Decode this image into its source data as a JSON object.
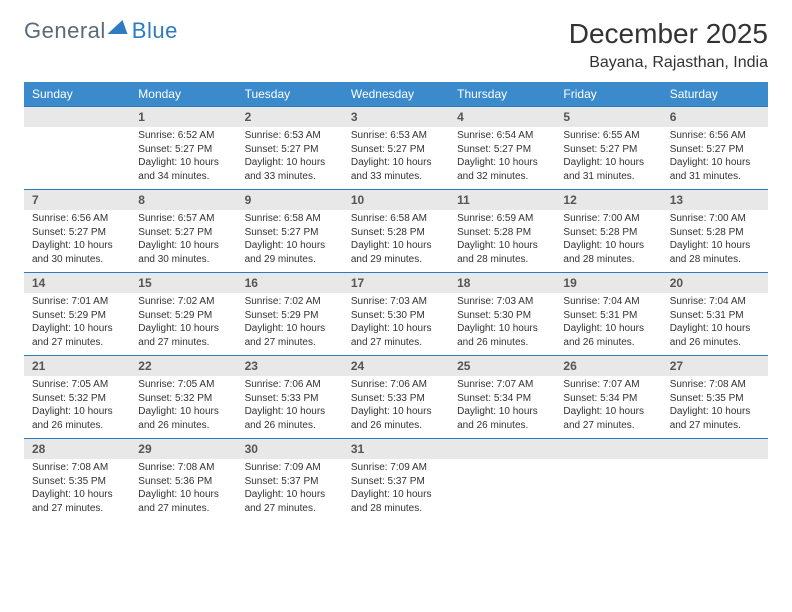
{
  "logo": {
    "part1": "General",
    "part2": "Blue"
  },
  "header": {
    "month_title": "December 2025",
    "location": "Bayana, Rajasthan, India"
  },
  "style": {
    "header_bg": "#3b8bcc",
    "header_text": "#ffffff",
    "daynum_bg": "#e8e8e8",
    "daynum_text": "#555555",
    "border_color": "#2d7bc0",
    "body_text": "#333333",
    "title_fontsize": 28,
    "location_fontsize": 16,
    "weekday_fontsize": 12,
    "daynum_fontsize": 12,
    "detail_fontsize": 10
  },
  "weekdays": [
    "Sunday",
    "Monday",
    "Tuesday",
    "Wednesday",
    "Thursday",
    "Friday",
    "Saturday"
  ],
  "weeks": [
    [
      null,
      {
        "n": "1",
        "sr": "Sunrise: 6:52 AM",
        "ss": "Sunset: 5:27 PM",
        "dl": "Daylight: 10 hours and 34 minutes."
      },
      {
        "n": "2",
        "sr": "Sunrise: 6:53 AM",
        "ss": "Sunset: 5:27 PM",
        "dl": "Daylight: 10 hours and 33 minutes."
      },
      {
        "n": "3",
        "sr": "Sunrise: 6:53 AM",
        "ss": "Sunset: 5:27 PM",
        "dl": "Daylight: 10 hours and 33 minutes."
      },
      {
        "n": "4",
        "sr": "Sunrise: 6:54 AM",
        "ss": "Sunset: 5:27 PM",
        "dl": "Daylight: 10 hours and 32 minutes."
      },
      {
        "n": "5",
        "sr": "Sunrise: 6:55 AM",
        "ss": "Sunset: 5:27 PM",
        "dl": "Daylight: 10 hours and 31 minutes."
      },
      {
        "n": "6",
        "sr": "Sunrise: 6:56 AM",
        "ss": "Sunset: 5:27 PM",
        "dl": "Daylight: 10 hours and 31 minutes."
      }
    ],
    [
      {
        "n": "7",
        "sr": "Sunrise: 6:56 AM",
        "ss": "Sunset: 5:27 PM",
        "dl": "Daylight: 10 hours and 30 minutes."
      },
      {
        "n": "8",
        "sr": "Sunrise: 6:57 AM",
        "ss": "Sunset: 5:27 PM",
        "dl": "Daylight: 10 hours and 30 minutes."
      },
      {
        "n": "9",
        "sr": "Sunrise: 6:58 AM",
        "ss": "Sunset: 5:27 PM",
        "dl": "Daylight: 10 hours and 29 minutes."
      },
      {
        "n": "10",
        "sr": "Sunrise: 6:58 AM",
        "ss": "Sunset: 5:28 PM",
        "dl": "Daylight: 10 hours and 29 minutes."
      },
      {
        "n": "11",
        "sr": "Sunrise: 6:59 AM",
        "ss": "Sunset: 5:28 PM",
        "dl": "Daylight: 10 hours and 28 minutes."
      },
      {
        "n": "12",
        "sr": "Sunrise: 7:00 AM",
        "ss": "Sunset: 5:28 PM",
        "dl": "Daylight: 10 hours and 28 minutes."
      },
      {
        "n": "13",
        "sr": "Sunrise: 7:00 AM",
        "ss": "Sunset: 5:28 PM",
        "dl": "Daylight: 10 hours and 28 minutes."
      }
    ],
    [
      {
        "n": "14",
        "sr": "Sunrise: 7:01 AM",
        "ss": "Sunset: 5:29 PM",
        "dl": "Daylight: 10 hours and 27 minutes."
      },
      {
        "n": "15",
        "sr": "Sunrise: 7:02 AM",
        "ss": "Sunset: 5:29 PM",
        "dl": "Daylight: 10 hours and 27 minutes."
      },
      {
        "n": "16",
        "sr": "Sunrise: 7:02 AM",
        "ss": "Sunset: 5:29 PM",
        "dl": "Daylight: 10 hours and 27 minutes."
      },
      {
        "n": "17",
        "sr": "Sunrise: 7:03 AM",
        "ss": "Sunset: 5:30 PM",
        "dl": "Daylight: 10 hours and 27 minutes."
      },
      {
        "n": "18",
        "sr": "Sunrise: 7:03 AM",
        "ss": "Sunset: 5:30 PM",
        "dl": "Daylight: 10 hours and 26 minutes."
      },
      {
        "n": "19",
        "sr": "Sunrise: 7:04 AM",
        "ss": "Sunset: 5:31 PM",
        "dl": "Daylight: 10 hours and 26 minutes."
      },
      {
        "n": "20",
        "sr": "Sunrise: 7:04 AM",
        "ss": "Sunset: 5:31 PM",
        "dl": "Daylight: 10 hours and 26 minutes."
      }
    ],
    [
      {
        "n": "21",
        "sr": "Sunrise: 7:05 AM",
        "ss": "Sunset: 5:32 PM",
        "dl": "Daylight: 10 hours and 26 minutes."
      },
      {
        "n": "22",
        "sr": "Sunrise: 7:05 AM",
        "ss": "Sunset: 5:32 PM",
        "dl": "Daylight: 10 hours and 26 minutes."
      },
      {
        "n": "23",
        "sr": "Sunrise: 7:06 AM",
        "ss": "Sunset: 5:33 PM",
        "dl": "Daylight: 10 hours and 26 minutes."
      },
      {
        "n": "24",
        "sr": "Sunrise: 7:06 AM",
        "ss": "Sunset: 5:33 PM",
        "dl": "Daylight: 10 hours and 26 minutes."
      },
      {
        "n": "25",
        "sr": "Sunrise: 7:07 AM",
        "ss": "Sunset: 5:34 PM",
        "dl": "Daylight: 10 hours and 26 minutes."
      },
      {
        "n": "26",
        "sr": "Sunrise: 7:07 AM",
        "ss": "Sunset: 5:34 PM",
        "dl": "Daylight: 10 hours and 27 minutes."
      },
      {
        "n": "27",
        "sr": "Sunrise: 7:08 AM",
        "ss": "Sunset: 5:35 PM",
        "dl": "Daylight: 10 hours and 27 minutes."
      }
    ],
    [
      {
        "n": "28",
        "sr": "Sunrise: 7:08 AM",
        "ss": "Sunset: 5:35 PM",
        "dl": "Daylight: 10 hours and 27 minutes."
      },
      {
        "n": "29",
        "sr": "Sunrise: 7:08 AM",
        "ss": "Sunset: 5:36 PM",
        "dl": "Daylight: 10 hours and 27 minutes."
      },
      {
        "n": "30",
        "sr": "Sunrise: 7:09 AM",
        "ss": "Sunset: 5:37 PM",
        "dl": "Daylight: 10 hours and 27 minutes."
      },
      {
        "n": "31",
        "sr": "Sunrise: 7:09 AM",
        "ss": "Sunset: 5:37 PM",
        "dl": "Daylight: 10 hours and 28 minutes."
      },
      null,
      null,
      null
    ]
  ]
}
